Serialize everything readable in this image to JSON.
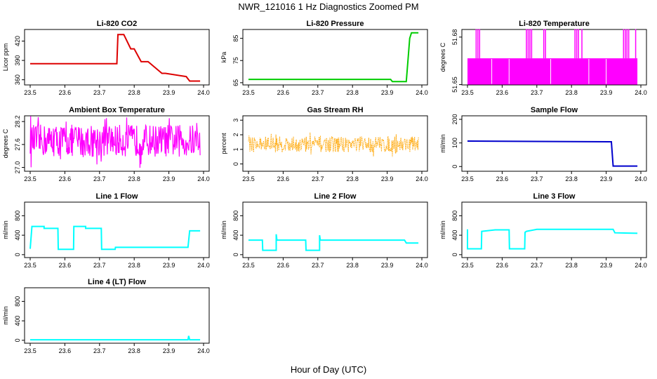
{
  "page_title": "NWR_121016  1 Hz Diagnostics Zoomed PM",
  "x_axis_title": "Hour of Day (UTC)",
  "colors": {
    "red": "#dd0000",
    "green": "#00cc00",
    "magenta": "#ff00ff",
    "orange": "#ffa500",
    "blue": "#0000cc",
    "cyan": "#00ffff"
  },
  "chart_data": [
    {
      "type": "line",
      "title": "Li-820 CO2",
      "ylabel": "Licor ppm",
      "color": "red",
      "xlim": [
        23.5,
        24.0
      ],
      "ylim": [
        352,
        438
      ],
      "yticks": [
        360,
        390,
        420
      ],
      "ytick_labels": [
        "360",
        "390",
        "420"
      ],
      "x": [
        23.5,
        23.75,
        23.753,
        23.77,
        23.79,
        23.8,
        23.82,
        23.84,
        23.88,
        23.89,
        23.95,
        23.96,
        23.99
      ],
      "y": [
        385,
        385,
        430,
        430,
        408,
        408,
        388,
        388,
        370,
        370,
        365,
        358,
        358
      ]
    },
    {
      "type": "line",
      "title": "Li-820 Pressure",
      "ylabel": "kPa",
      "color": "green",
      "xlim": [
        23.5,
        24.0
      ],
      "ylim": [
        64,
        89
      ],
      "yticks": [
        65,
        75,
        85
      ],
      "ytick_labels": [
        "65",
        "75",
        "85"
      ],
      "x": [
        23.5,
        23.91,
        23.915,
        23.955,
        23.96,
        23.965,
        23.97,
        23.97,
        23.99
      ],
      "y": [
        66.5,
        66.5,
        65.5,
        65.5,
        75,
        85,
        87.5,
        87.5,
        87.5
      ]
    },
    {
      "type": "line",
      "title": "Li-820 Temperature",
      "ylabel": "degrees C",
      "color": "magenta",
      "xlim": [
        23.5,
        24.0
      ],
      "ylim": [
        51.6498,
        51.6848
      ],
      "yticks": [
        51.65,
        51.68
      ],
      "ytick_labels": [
        "51.65",
        "51.68"
      ],
      "levels": [
        51.65,
        51.6666
      ],
      "spike_level": 51.685,
      "spikes": [
        23.525,
        23.53,
        23.535,
        23.67,
        23.675,
        23.68,
        23.685,
        23.72,
        23.725,
        23.81,
        23.815,
        23.82,
        23.83,
        23.95,
        23.955,
        23.96,
        23.965,
        23.985
      ],
      "gaps": [
        23.57,
        23.62,
        23.74,
        23.85,
        23.9
      ]
    },
    {
      "type": "line",
      "title": "Ambient Box Temperature",
      "ylabel": "degrees C",
      "color": "magenta",
      "xlim": [
        23.5,
        24.0
      ],
      "ylim": [
        26.9,
        28.35
      ],
      "yticks": [
        27.0,
        27.6,
        28.2
      ],
      "ytick_labels": [
        "27.0",
        "27.6",
        "28.2"
      ],
      "center": 27.7,
      "amplitude": 0.42
    },
    {
      "type": "scatter",
      "title": "Gas Stream RH",
      "ylabel": "percent",
      "color": "orange",
      "xlim": [
        23.5,
        24.0
      ],
      "ylim": [
        -0.5,
        3.3
      ],
      "yticks": [
        0,
        1,
        2,
        3
      ],
      "ytick_labels": [
        "0",
        "1",
        "2",
        "3"
      ],
      "center": 1.35,
      "amplitude": 0.55
    },
    {
      "type": "line",
      "title": "Sample Flow",
      "ylabel": "ml/min",
      "color": "blue",
      "xlim": [
        23.5,
        24.0
      ],
      "ylim": [
        -20,
        215
      ],
      "yticks": [
        0,
        100,
        200
      ],
      "ytick_labels": [
        "0",
        "100",
        "200"
      ],
      "x": [
        23.5,
        23.91,
        23.915,
        23.92,
        23.99
      ],
      "y": [
        108,
        105,
        105,
        2,
        2
      ]
    },
    {
      "type": "line",
      "title": "Line 1 Flow",
      "ylabel": "ml/min",
      "color": "cyan",
      "xlim": [
        23.5,
        24.0
      ],
      "ylim": [
        -60,
        1080
      ],
      "yticks": [
        0,
        400,
        800
      ],
      "ytick_labels": [
        "0",
        "400",
        "800"
      ],
      "x": [
        23.5,
        23.505,
        23.54,
        23.54,
        23.58,
        23.581,
        23.625,
        23.626,
        23.66,
        23.66,
        23.705,
        23.706,
        23.745,
        23.746,
        23.955,
        23.96,
        23.99
      ],
      "y": [
        120,
        580,
        580,
        540,
        540,
        110,
        110,
        580,
        580,
        540,
        540,
        110,
        110,
        150,
        150,
        490,
        490
      ]
    },
    {
      "type": "line",
      "title": "Line 2 Flow",
      "ylabel": "ml/min",
      "color": "cyan",
      "xlim": [
        23.5,
        24.0
      ],
      "ylim": [
        -60,
        1080
      ],
      "yticks": [
        0,
        400,
        800
      ],
      "ytick_labels": [
        "0",
        "400",
        "800"
      ],
      "x": [
        23.5,
        23.54,
        23.541,
        23.58,
        23.58,
        23.582,
        23.665,
        23.666,
        23.705,
        23.705,
        23.707,
        23.95,
        23.955,
        23.99
      ],
      "y": [
        300,
        300,
        90,
        90,
        420,
        300,
        300,
        90,
        90,
        400,
        300,
        300,
        240,
        240
      ]
    },
    {
      "type": "line",
      "title": "Line 3 Flow",
      "ylabel": "ml/min",
      "color": "cyan",
      "xlim": [
        23.5,
        24.0
      ],
      "ylim": [
        -60,
        1080
      ],
      "yticks": [
        0,
        400,
        800
      ],
      "ytick_labels": [
        "0",
        "400",
        "800"
      ],
      "x": [
        23.5,
        23.5,
        23.502,
        23.54,
        23.541,
        23.58,
        23.62,
        23.621,
        23.665,
        23.666,
        23.67,
        23.7,
        23.92,
        23.925,
        23.99
      ],
      "y": [
        520,
        120,
        120,
        120,
        480,
        510,
        510,
        120,
        120,
        460,
        480,
        520,
        520,
        450,
        440
      ]
    },
    {
      "type": "line",
      "title": "Line 4 (LT) Flow",
      "ylabel": "ml/min",
      "color": "cyan",
      "xlim": [
        23.5,
        24.0
      ],
      "ylim": [
        -60,
        1080
      ],
      "yticks": [
        0,
        400,
        800
      ],
      "ytick_labels": [
        "0",
        "400",
        "800"
      ],
      "x": [
        23.5,
        23.955,
        23.957,
        23.96,
        23.99
      ],
      "y": [
        10,
        10,
        90,
        10,
        10
      ]
    }
  ]
}
